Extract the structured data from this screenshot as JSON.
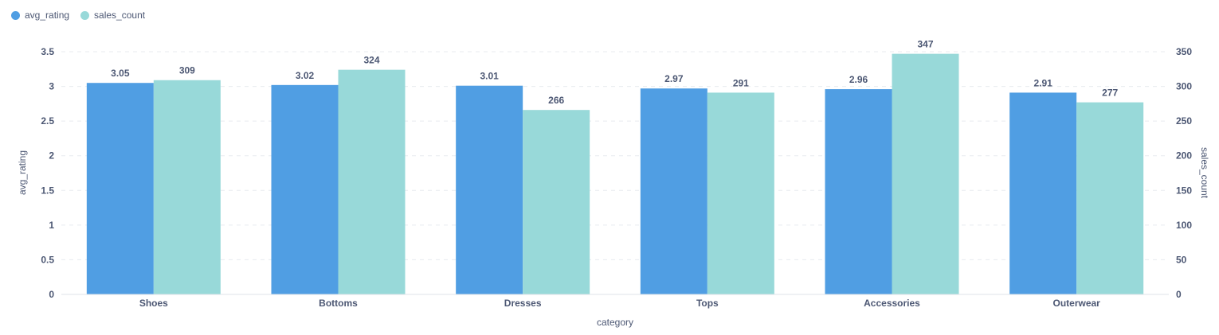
{
  "chart_data": {
    "type": "bar",
    "categories": [
      "Shoes",
      "Bottoms",
      "Dresses",
      "Tops",
      "Accessories",
      "Outerwear"
    ],
    "series": [
      {
        "name": "avg_rating",
        "axis": "left",
        "color": "#509ee3",
        "values": [
          3.05,
          3.02,
          3.01,
          2.97,
          2.96,
          2.91
        ],
        "labels": [
          "3.05",
          "3.02",
          "3.01",
          "2.97",
          "2.96",
          "2.91"
        ]
      },
      {
        "name": "sales_count",
        "axis": "right",
        "color": "#98d9d9",
        "values": [
          309,
          324,
          266,
          291,
          347,
          277
        ],
        "labels": [
          "309",
          "324",
          "266",
          "291",
          "347",
          "277"
        ]
      }
    ],
    "xlabel": "category",
    "ylabel_left": "avg_rating",
    "ylabel_right": "sales_count",
    "ylim_left": [
      0,
      3.5
    ],
    "ylim_right": [
      0,
      350
    ],
    "yticks_left": [
      "0",
      "0.5",
      "1",
      "1.5",
      "2",
      "2.5",
      "3",
      "3.5"
    ],
    "yticks_right": [
      "0",
      "50",
      "100",
      "150",
      "200",
      "250",
      "300",
      "350"
    ],
    "grid": true,
    "legend_position": "top-left"
  }
}
